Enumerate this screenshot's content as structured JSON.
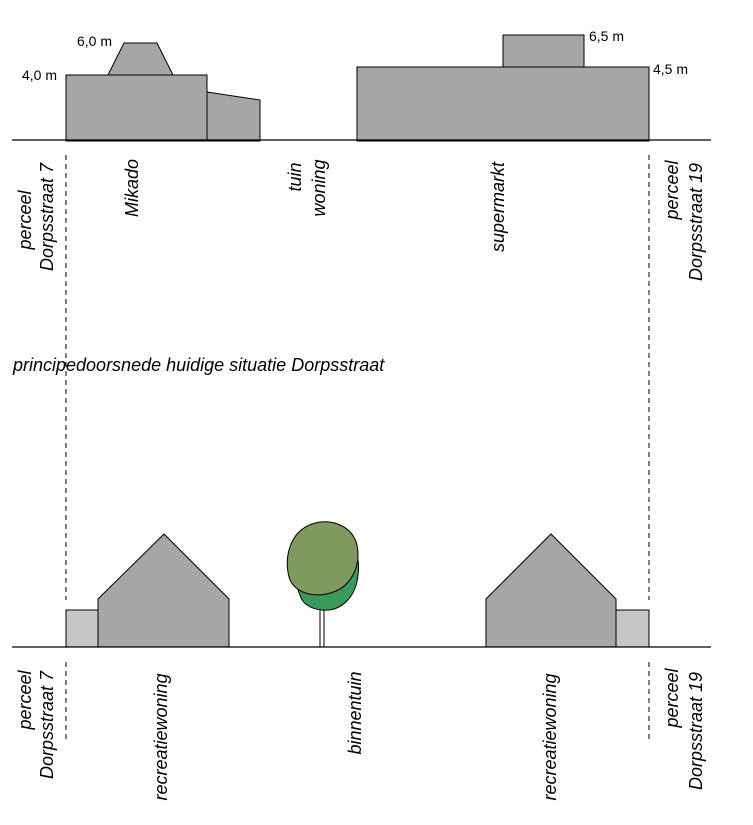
{
  "top_section": {
    "heights": {
      "mikado_low": "4,0 m",
      "mikado_high": "6,0 m",
      "supermarkt_high": "6,5 m",
      "supermarkt_low": "4,5 m"
    },
    "labels": {
      "perceel_left_1": "perceel",
      "perceel_left_2": "Dorpsstraat 7",
      "mikado": "Mikado",
      "tuin_1": "tuin",
      "tuin_2": "woning",
      "supermarkt": "supermarkt",
      "perceel_right_1": "perceel",
      "perceel_right_2": "Dorpsstraat 19"
    }
  },
  "title": "principedoorsnede huidige situatie Dorpsstraat",
  "bottom_section": {
    "labels": {
      "perceel_left_1": "perceel",
      "perceel_left_2": "Dorpsstraat 7",
      "recreatiewoning_left": "recreatiewoning",
      "binnentuin": "binnentuin",
      "recreatiewoning_right": "recreatiewoning",
      "perceel_right_1": "perceel",
      "perceel_right_2": "Dorpsstraat 19"
    }
  },
  "colors": {
    "building": "#a6a6a6",
    "building_light": "#c6c6c6",
    "tree_back": "#3a9a5c",
    "tree_front": "#7e9a5e"
  }
}
